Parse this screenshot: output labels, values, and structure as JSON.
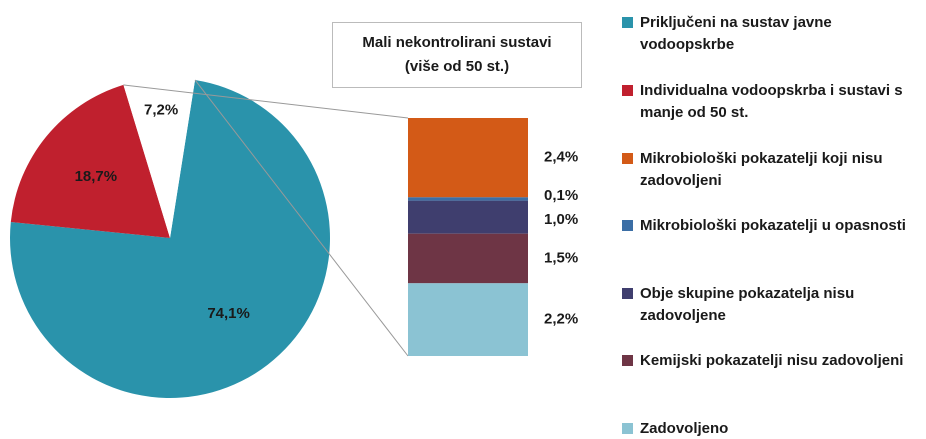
{
  "chart_data": {
    "type": "pie",
    "categories": [
      "Priključeni na sustav javne vodoopskrbe",
      "Individualna vodoopskrba i sustavi s manje od 50 st.",
      "Mali nekontrolirani sustavi (više od 50 st.)"
    ],
    "values": [
      74.1,
      18.7,
      7.2
    ],
    "value_labels": [
      "74,1%",
      "18,7%",
      "7,2%"
    ],
    "colors": [
      "#2a93ab",
      "#c0202e",
      "#ffffff"
    ],
    "bar": {
      "categories": [
        "Mikrobiološki pokazatelji koji nisu zadovoljeni",
        "Mikrobiološki pokazatelji u opasnosti",
        "Obje skupine pokazatelja nisu zadovoljene",
        "Kemijski pokazatelji nisu zadovoljeni",
        "Zadovoljeno"
      ],
      "values": [
        2.4,
        0.1,
        1.0,
        1.5,
        2.2
      ],
      "value_labels": [
        "2,4%",
        "0,1%",
        "1,0%",
        "1,5%",
        "2,2%"
      ],
      "colors": [
        "#d35a17",
        "#3b6ea5",
        "#3f3e6e",
        "#6e3545",
        "#8bc3d3"
      ]
    }
  }
}
